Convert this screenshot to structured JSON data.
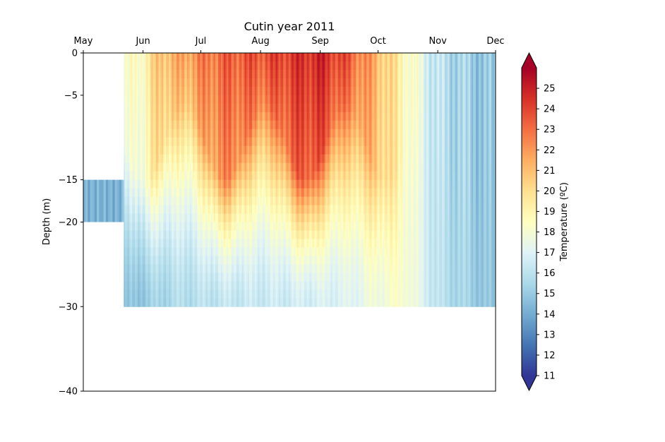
{
  "chart_data": {
    "type": "heatmap",
    "title": "Cutin year 2011",
    "xlabel": "",
    "ylabel": "Depth (m)",
    "x_ticks": [
      "May",
      "Jun",
      "Jul",
      "Aug",
      "Sep",
      "Oct",
      "Nov",
      "Dec"
    ],
    "x_axis_position": "top",
    "xlim": [
      "2011-05-01",
      "2011-12-01"
    ],
    "y_ticks": [
      0,
      -5,
      -15,
      -20,
      -30,
      -40
    ],
    "ylim": [
      -40,
      0
    ],
    "colorbar": {
      "label": "Temperature (ºC)",
      "ticks": [
        11,
        12,
        13,
        14,
        15,
        16,
        17,
        18,
        19,
        20,
        21,
        22,
        23,
        24,
        25
      ],
      "vmin": 11,
      "vmax": 26,
      "colormap": "RdYlBu_r",
      "extend": "both",
      "colors": [
        "#313695",
        "#4575b4",
        "#74add1",
        "#abd9e9",
        "#e0f3f8",
        "#ffffbf",
        "#fee090",
        "#fdae61",
        "#f46d43",
        "#d73027",
        "#a50026"
      ]
    },
    "data_coverage": [
      {
        "start": "2011-05-01",
        "end": "2011-05-22",
        "depth_top": -15,
        "depth_bottom": -20,
        "temperature": 14.2
      },
      {
        "start": "2011-05-22",
        "end": "2011-12-01",
        "depth_top": 0,
        "depth_bottom": -30
      }
    ],
    "surface_temperature_profile": [
      {
        "date": "2011-05-22",
        "temperature": 17.8
      },
      {
        "date": "2011-06-01",
        "temperature": 18.8
      },
      {
        "date": "2011-06-10",
        "temperature": 21.0
      },
      {
        "date": "2011-06-20",
        "temperature": 21.5
      },
      {
        "date": "2011-07-01",
        "temperature": 22.5
      },
      {
        "date": "2011-07-15",
        "temperature": 23.3
      },
      {
        "date": "2011-08-01",
        "temperature": 23.7
      },
      {
        "date": "2011-08-15",
        "temperature": 24.2
      },
      {
        "date": "2011-09-01",
        "temperature": 24.8
      },
      {
        "date": "2011-09-15",
        "temperature": 23.6
      },
      {
        "date": "2011-10-01",
        "temperature": 21.2
      },
      {
        "date": "2011-10-15",
        "temperature": 18.8
      },
      {
        "date": "2011-11-01",
        "temperature": 16.0
      },
      {
        "date": "2011-11-15",
        "temperature": 15.3
      },
      {
        "date": "2011-12-01",
        "temperature": 14.6
      }
    ],
    "bottom_temperature_profile": [
      {
        "date": "2011-05-22",
        "temperature": 14.5
      },
      {
        "date": "2011-06-15",
        "temperature": 15.6
      },
      {
        "date": "2011-07-15",
        "temperature": 16.2
      },
      {
        "date": "2011-08-15",
        "temperature": 16.5
      },
      {
        "date": "2011-09-15",
        "temperature": 17.0
      },
      {
        "date": "2011-10-01",
        "temperature": 17.8
      },
      {
        "date": "2011-10-15",
        "temperature": 18.2
      },
      {
        "date": "2011-11-01",
        "temperature": 16.0
      },
      {
        "date": "2011-12-01",
        "temperature": 14.6
      }
    ]
  }
}
